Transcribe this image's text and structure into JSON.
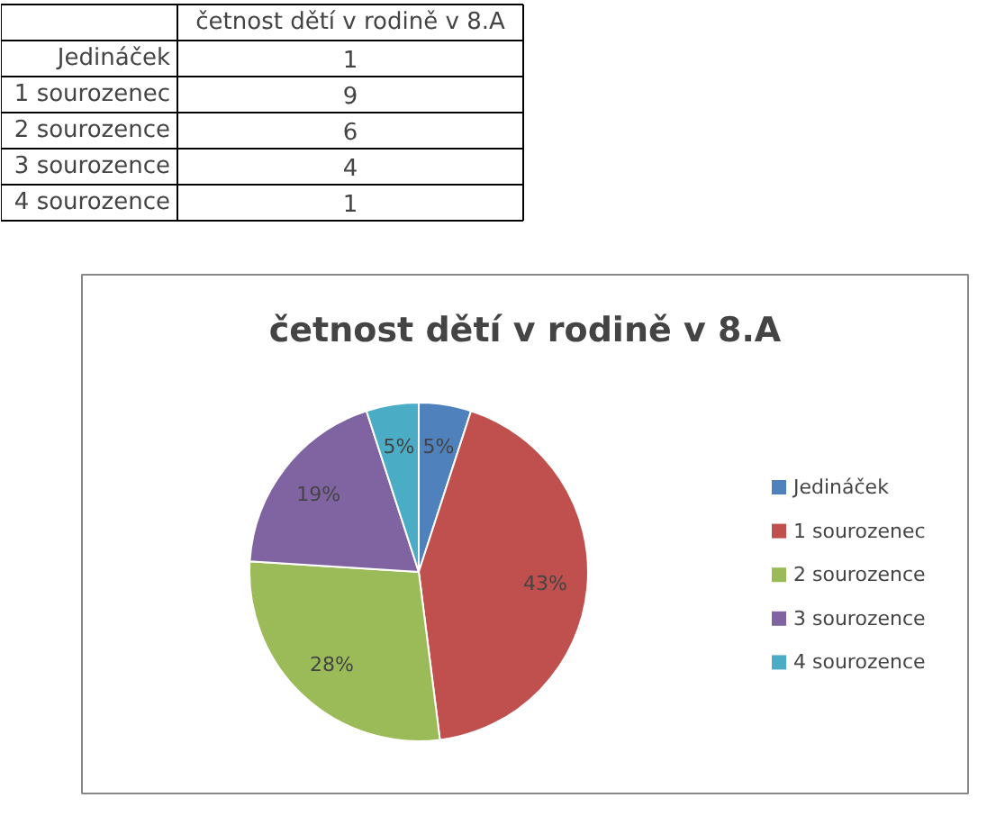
{
  "chart_data": {
    "type": "pie",
    "title": "četnost dětí v rodině v 8.A",
    "categories": [
      "Jedináček",
      "1 sourozenec",
      "2 sourozence",
      "3 sourozence",
      "4 sourozence"
    ],
    "values": [
      5,
      43,
      28,
      19,
      5
    ],
    "annotations": [
      "1",
      "9",
      "6",
      "4",
      "1"
    ],
    "colors": [
      "#4f81bd",
      "#c0504d",
      "#9bbb59",
      "#8064a2",
      "#4bacc6"
    ],
    "value_labels": [
      "5%",
      "43%",
      "28%",
      "19%",
      "5%"
    ],
    "legend": "right"
  }
}
